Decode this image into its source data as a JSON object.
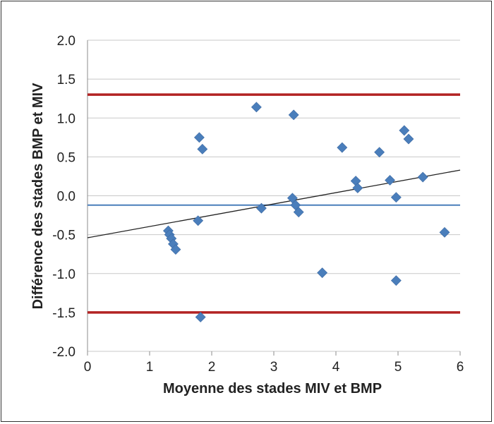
{
  "chart_data": {
    "type": "scatter",
    "title": "",
    "xlabel": "Moyenne des stades MIV et BMP",
    "ylabel": "Différence des stades BMP et MIV",
    "xlim": [
      0,
      6
    ],
    "ylim": [
      -2.0,
      2.0
    ],
    "x_ticks": [
      "0",
      "1",
      "2",
      "3",
      "4",
      "5",
      "6"
    ],
    "y_ticks": [
      "2.0",
      "1.5",
      "1.0",
      "0.5",
      "0.0",
      "-0.5",
      "-1.0",
      "-1.5",
      "-2.0"
    ],
    "grid": "horizontal",
    "series": [
      {
        "marker": "diamond",
        "color": "#4a7ebb",
        "points": [
          [
            1.3,
            -0.45
          ],
          [
            1.32,
            -0.5
          ],
          [
            1.35,
            -0.55
          ],
          [
            1.38,
            -0.62
          ],
          [
            1.42,
            -0.69
          ],
          [
            1.78,
            -0.32
          ],
          [
            1.8,
            0.75
          ],
          [
            1.85,
            0.6
          ],
          [
            1.82,
            -1.56
          ],
          [
            2.72,
            1.14
          ],
          [
            2.8,
            -0.16
          ],
          [
            3.3,
            -0.03
          ],
          [
            3.32,
            1.04
          ],
          [
            3.35,
            -0.12
          ],
          [
            3.4,
            -0.21
          ],
          [
            3.78,
            -0.99
          ],
          [
            4.1,
            0.62
          ],
          [
            4.32,
            0.19
          ],
          [
            4.35,
            0.1
          ],
          [
            4.7,
            0.56
          ],
          [
            4.87,
            0.2
          ],
          [
            4.97,
            -0.02
          ],
          [
            4.97,
            -1.09
          ],
          [
            5.1,
            0.84
          ],
          [
            5.17,
            0.73
          ],
          [
            5.4,
            0.24
          ],
          [
            5.75,
            -0.47
          ]
        ]
      }
    ],
    "reference_lines": [
      {
        "kind": "upper_limit",
        "y": 1.3,
        "color": "#b22222"
      },
      {
        "kind": "mean",
        "y": -0.12,
        "color": "#4a7ebb"
      },
      {
        "kind": "lower_limit",
        "y": -1.5,
        "color": "#b22222"
      }
    ],
    "trend_line": {
      "x": [
        0,
        6
      ],
      "y": [
        -0.54,
        0.33
      ],
      "color": "#222222"
    }
  }
}
